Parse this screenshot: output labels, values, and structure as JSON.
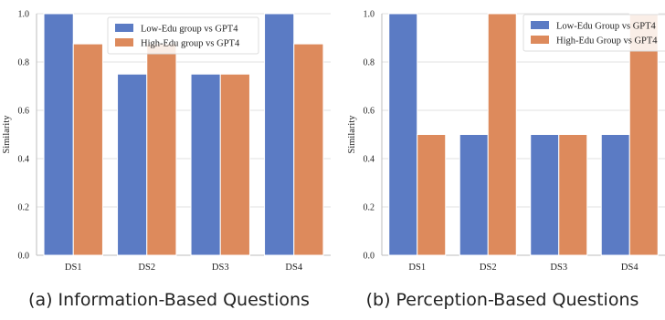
{
  "colors": {
    "low": "#5b7bc4",
    "high": "#dd8a5c",
    "grid": "#e2e2e2",
    "axis": "#bdbdbd",
    "text": "#222222"
  },
  "chart_data": [
    {
      "type": "bar",
      "categories": [
        "DS1",
        "DS2",
        "DS3",
        "DS4"
      ],
      "series": [
        {
          "name": "Low-Edu group vs GPT4",
          "values": [
            1.0,
            0.75,
            0.75,
            1.0
          ]
        },
        {
          "name": "High-Edu group vs GPT4",
          "values": [
            0.875,
            0.875,
            0.75,
            0.875
          ]
        }
      ],
      "ylabel": "Similarity",
      "ylim": [
        0,
        1.0
      ],
      "yticks": [
        "0.0",
        "0.2",
        "0.4",
        "0.6",
        "0.8",
        "1.0"
      ],
      "grid": true,
      "legend": "top-right",
      "caption": "(a) Information-Based Questions"
    },
    {
      "type": "bar",
      "categories": [
        "DS1",
        "DS2",
        "DS3",
        "DS4"
      ],
      "series": [
        {
          "name": "Low-Edu Group vs GPT4",
          "values": [
            1.0,
            0.5,
            0.5,
            0.5
          ]
        },
        {
          "name": "High-Edu Group vs GPT4",
          "values": [
            0.5,
            1.0,
            0.5,
            1.0
          ]
        }
      ],
      "ylabel": "Similarity",
      "ylim": [
        0,
        1.0
      ],
      "yticks": [
        "0.0",
        "0.2",
        "0.4",
        "0.6",
        "0.8",
        "1.0"
      ],
      "grid": true,
      "legend": "top-right",
      "caption": "(b) Perception-Based Questions"
    }
  ]
}
